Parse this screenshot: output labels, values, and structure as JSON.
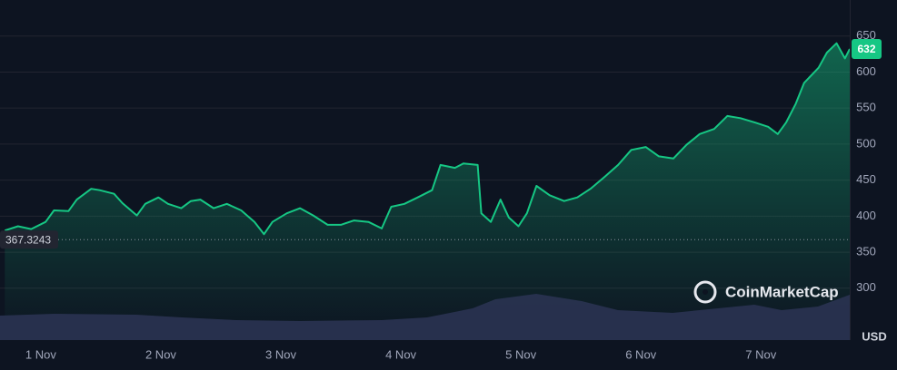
{
  "chart_data": {
    "type": "line",
    "color": "#16c784",
    "x": [
      -0.3,
      -0.19,
      -0.08,
      0.04,
      0.11,
      0.23,
      0.3,
      0.42,
      0.49,
      0.61,
      0.68,
      0.8,
      0.87,
      0.98,
      1.06,
      1.17,
      1.25,
      1.33,
      1.44,
      1.55,
      1.67,
      1.78,
      1.86,
      1.93,
      2.05,
      2.16,
      2.27,
      2.39,
      2.5,
      2.61,
      2.73,
      2.84,
      2.92,
      3.03,
      3.14,
      3.26,
      3.33,
      3.45,
      3.52,
      3.64,
      3.67,
      3.75,
      3.83,
      3.9,
      3.98,
      4.05,
      4.13,
      4.24,
      4.36,
      4.47,
      4.58,
      4.7,
      4.81,
      4.92,
      5.04,
      5.15,
      5.27,
      5.38,
      5.49,
      5.61,
      5.72,
      5.83,
      5.95,
      6.06,
      6.14,
      6.21,
      6.29,
      6.36,
      6.48,
      6.55,
      6.63,
      6.7,
      6.74
    ],
    "values": [
      380,
      386,
      382,
      392,
      408,
      407,
      423,
      438,
      436,
      431,
      418,
      401,
      417,
      426,
      417,
      411,
      421,
      423,
      411,
      417,
      408,
      392,
      375,
      392,
      404,
      411,
      401,
      388,
      388,
      394,
      392,
      383,
      413,
      417,
      426,
      436,
      471,
      467,
      473,
      471,
      404,
      392,
      423,
      398,
      386,
      404,
      442,
      429,
      421,
      426,
      438,
      455,
      471,
      492,
      496,
      483,
      480,
      499,
      514,
      521,
      539,
      536,
      530,
      524,
      514,
      530,
      556,
      585,
      606,
      627,
      640,
      619,
      632
    ],
    "xlim": [
      -0.34,
      6.74
    ],
    "xticks": [
      {
        "value": 0,
        "label": "1 Nov"
      },
      {
        "value": 1,
        "label": "2 Nov"
      },
      {
        "value": 2,
        "label": "3 Nov"
      },
      {
        "value": 3,
        "label": "4 Nov"
      },
      {
        "value": 4,
        "label": "5 Nov"
      },
      {
        "value": 5,
        "label": "6 Nov"
      },
      {
        "value": 6,
        "label": "7 Nov"
      }
    ],
    "ylim": [
      228,
      700
    ],
    "yticks": [
      300,
      350,
      400,
      450,
      500,
      550,
      600,
      650
    ],
    "grid": true,
    "reference_line": 367.3243,
    "currency": "USD",
    "watermark": "CoinMarketCap"
  }
}
